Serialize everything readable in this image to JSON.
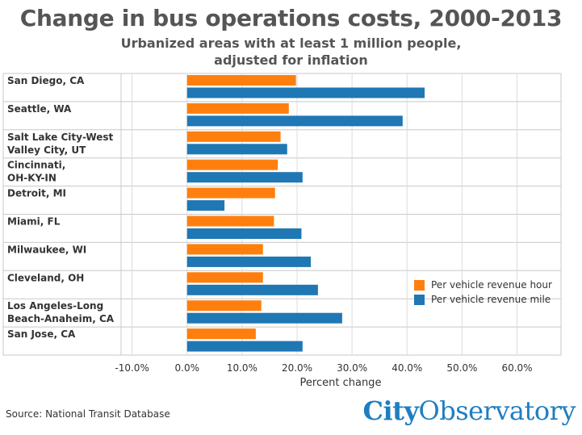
{
  "chart_data": {
    "type": "bar",
    "orientation": "horizontal",
    "title": "Change in bus operations costs, 2000-2013",
    "subtitle_lines": [
      "Urbanized areas with at least 1 million people,",
      "adjusted for inflation"
    ],
    "categories": [
      [
        "San Diego, CA"
      ],
      [
        "Seattle, WA"
      ],
      [
        "Salt Lake City-West",
        "Valley City, UT"
      ],
      [
        "Cincinnati,",
        "OH-KY-IN"
      ],
      [
        "Detroit, MI"
      ],
      [
        "Miami, FL"
      ],
      [
        "Milwaukee, WI"
      ],
      [
        "Cleveland, OH"
      ],
      [
        "Los Angeles-Long",
        "Beach-Anaheim, CA"
      ],
      [
        "San Jose, CA"
      ]
    ],
    "series": [
      {
        "name": "Per vehicle revenue hour",
        "color": "#ff7f0e",
        "values": [
          19.8,
          18.5,
          17.0,
          16.5,
          16.0,
          15.8,
          13.8,
          13.8,
          13.5,
          12.5
        ]
      },
      {
        "name": "Per vehicle revenue mile",
        "color": "#1f77b4",
        "values": [
          43.2,
          39.2,
          18.2,
          21.0,
          6.8,
          20.8,
          22.5,
          23.8,
          28.2,
          21.0
        ]
      }
    ],
    "xlabel": "Percent change",
    "xlim": [
      -12,
      68
    ],
    "xticks": [
      -10,
      0,
      10,
      20,
      30,
      40,
      50,
      60
    ],
    "xtick_labels": [
      "-10.0%",
      "0.0%",
      "10.0%",
      "20.0%",
      "30.0%",
      "40.0%",
      "50.0%",
      "60.0%"
    ],
    "grid": true,
    "legend_position": "right-lower"
  },
  "source": "Source: National Transit Database",
  "logo": {
    "part1": "City",
    "part2": "Observatory"
  }
}
